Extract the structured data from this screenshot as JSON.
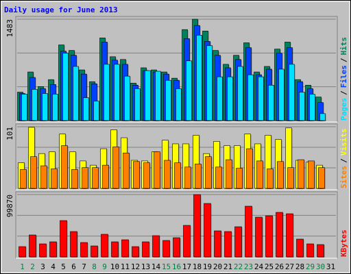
{
  "chart_data": [
    {
      "type": "bar",
      "title": "Daily usage for June 2013",
      "title_color": "#0000ff",
      "ylim": [
        0,
        1483
      ],
      "yticks": [
        1483
      ],
      "grid": true,
      "legend_separator": "/",
      "series": [
        {
          "name": "Hits",
          "color": "#00805c",
          "values": [
            416,
            711,
            498,
            599,
            1107,
            1026,
            741,
            569,
            1209,
            934,
            894,
            548,
            772,
            741,
            711,
            620,
            1331,
            1483,
            1310,
            1026,
            823,
            955,
            1138,
            711,
            792,
            1046,
            1148,
            599,
            518,
            345,
            null
          ]
        },
        {
          "name": "Files",
          "color": "#0040ff",
          "values": [
            396,
            631,
            467,
            528,
            1016,
            955,
            680,
            538,
            1148,
            884,
            823,
            518,
            731,
            711,
            680,
            589,
            1199,
            1391,
            1158,
            955,
            772,
            894,
            1067,
            670,
            752,
            985,
            1067,
            569,
            467,
            264,
            null
          ]
        },
        {
          "name": "Pages",
          "color": "#00e0ff",
          "values": [
            386,
            457,
            396,
            386,
            985,
            792,
            335,
            284,
            823,
            823,
            650,
            467,
            731,
            721,
            589,
            467,
            874,
            1249,
            1097,
            640,
            640,
            792,
            670,
            640,
            518,
            752,
            823,
            416,
            386,
            102,
            null
          ]
        }
      ]
    },
    {
      "type": "bar",
      "ylim": [
        0,
        101
      ],
      "yticks": [
        101
      ],
      "grid": true,
      "legend_separator": "/",
      "series": [
        {
          "name": "Visits",
          "color": "#ffff00",
          "values": [
            42,
            100,
            57,
            60,
            89,
            60,
            45,
            38,
            65,
            96,
            83,
            46,
            45,
            60,
            79,
            73,
            73,
            87,
            57,
            77,
            70,
            70,
            89,
            73,
            87,
            80,
            99,
            46,
            43,
            38,
            null
          ]
        },
        {
          "name": "Sites",
          "color": "#ff8000",
          "values": [
            31,
            52,
            37,
            32,
            70,
            31,
            34,
            34,
            38,
            68,
            58,
            44,
            42,
            60,
            46,
            42,
            35,
            40,
            52,
            35,
            47,
            33,
            65,
            45,
            32,
            44,
            34,
            47,
            45,
            34,
            null
          ]
        }
      ]
    },
    {
      "type": "bar",
      "ylim": [
        0,
        99870
      ],
      "yticks": [
        99870
      ],
      "grid": true,
      "categories": [
        "1",
        "2",
        "3",
        "4",
        "5",
        "6",
        "7",
        "8",
        "9",
        "10",
        "11",
        "12",
        "13",
        "14",
        "15",
        "16",
        "17",
        "18",
        "19",
        "20",
        "21",
        "22",
        "23",
        "24",
        "25",
        "26",
        "27",
        "28",
        "29",
        "30",
        "31"
      ],
      "category_colors": [
        "#008040",
        "#008040",
        "#000000",
        "#000000",
        "#000000",
        "#000000",
        "#000000",
        "#008040",
        "#008040",
        "#000000",
        "#000000",
        "#000000",
        "#000000",
        "#000000",
        "#008040",
        "#008040",
        "#000000",
        "#000000",
        "#000000",
        "#000000",
        "#000000",
        "#008040",
        "#008040",
        "#000000",
        "#000000",
        "#000000",
        "#000000",
        "#000000",
        "#008040",
        "#008040",
        "#000000"
      ],
      "series": [
        {
          "name": "KBytes",
          "color": "#ff0000",
          "values": [
            16462,
            35120,
            20852,
            24145,
            58167,
            40607,
            23047,
            17560,
            36217,
            24145,
            27437,
            16462,
            24145,
            34022,
            26340,
            30730,
            50485,
            99870,
            85605,
            41705,
            40607,
            48290,
            81212,
            63655,
            65850,
            71335,
            69140,
            28535,
            20852,
            19755,
            null
          ]
        }
      ]
    }
  ]
}
